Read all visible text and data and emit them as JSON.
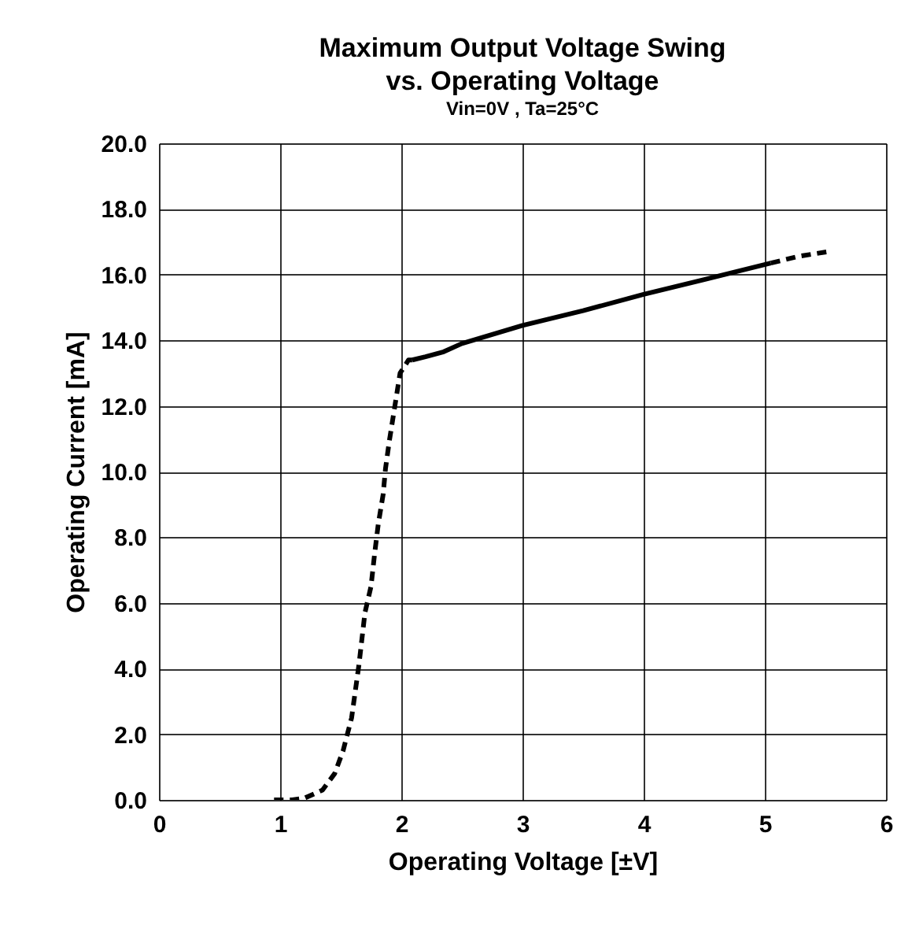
{
  "chart_data": {
    "type": "line",
    "title": "Maximum Output Voltage Swing\nvs. Operating Voltage",
    "subtitle": "Vin=0V , Ta=25°C",
    "xlabel": "Operating Voltage [±V]",
    "ylabel": "Operating Current [mA]",
    "series": [
      {
        "color": "#000000",
        "line_style": "dashed",
        "x": [
          0.95,
          1.1,
          1.2,
          1.35,
          1.45,
          1.52,
          1.59,
          1.65,
          1.7,
          1.75,
          1.78,
          1.81,
          1.85,
          1.87,
          1.9,
          1.93,
          1.96,
          1.99,
          2.06,
          2.09
        ],
        "values": [
          0,
          0,
          0.05,
          0.3,
          0.8,
          1.5,
          2.5,
          4.1,
          5.7,
          6.5,
          7.5,
          8.4,
          9.3,
          10.1,
          10.9,
          11.6,
          12.3,
          13.0,
          13.4,
          13.4
        ]
      },
      {
        "color": "#000000",
        "line_style": "solid",
        "x": [
          2.09,
          2.2,
          2.35,
          2.5,
          3.0,
          3.5,
          4.0,
          4.5,
          5.05
        ],
        "values": [
          13.4,
          13.5,
          13.65,
          13.9,
          14.45,
          14.9,
          15.4,
          15.85,
          16.35
        ]
      },
      {
        "color": "#000000",
        "line_style": "dashed",
        "x": [
          5.05,
          5.27,
          5.52
        ],
        "values": [
          16.35,
          16.55,
          16.7
        ]
      }
    ],
    "xlim": [
      0,
      6
    ],
    "xticks": [
      {
        "value": 0,
        "label": "0"
      },
      {
        "value": 1,
        "label": "1"
      },
      {
        "value": 2,
        "label": "2"
      },
      {
        "value": 3,
        "label": "3"
      },
      {
        "value": 4,
        "label": "4"
      },
      {
        "value": 5,
        "label": "5"
      },
      {
        "value": 6,
        "label": "6"
      }
    ],
    "ylim": [
      0,
      20
    ],
    "yticks": [
      {
        "value": 0,
        "label": "0.0"
      },
      {
        "value": 2,
        "label": "2.0"
      },
      {
        "value": 4,
        "label": "4.0"
      },
      {
        "value": 6,
        "label": "6.0"
      },
      {
        "value": 8,
        "label": "8.0"
      },
      {
        "value": 10,
        "label": "10.0"
      },
      {
        "value": 12,
        "label": "12.0"
      },
      {
        "value": 14,
        "label": "14.0"
      },
      {
        "value": 16,
        "label": "16.0"
      },
      {
        "value": 18,
        "label": "18.0"
      },
      {
        "value": 20,
        "label": "20.0"
      }
    ],
    "grid": true,
    "marker": "none"
  }
}
